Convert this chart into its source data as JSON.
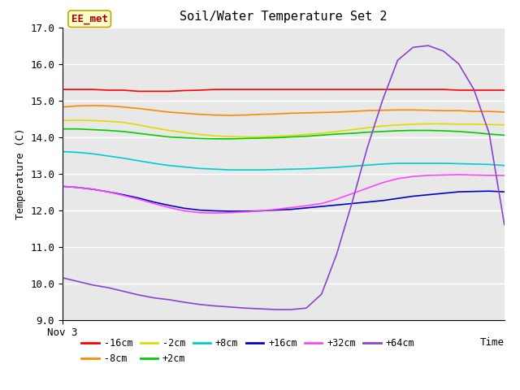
{
  "title": "Soil/Water Temperature Set 2",
  "xlabel": "Time",
  "ylabel": "Temperature (C)",
  "ylim": [
    9.0,
    17.0
  ],
  "ytick_values": [
    9.0,
    10.0,
    11.0,
    12.0,
    13.0,
    14.0,
    15.0,
    16.0,
    17.0
  ],
  "ytick_labels": [
    "9.0",
    "10.0",
    "11.0",
    "12.0",
    "13.0",
    "14.0",
    "15.0",
    "16.0",
    "17.0"
  ],
  "x_label_start": "Nov 3",
  "background_color": "#e8e8e8",
  "figure_bg": "#ffffff",
  "annotation_text": "EE_met",
  "annotation_bg": "#ffffcc",
  "annotation_border": "#bbaa00",
  "annotation_text_color": "#aa0000",
  "series": {
    "-16cm": {
      "color": "#ff0000",
      "y": [
        15.3,
        15.3,
        15.3,
        15.28,
        15.28,
        15.25,
        15.25,
        15.25,
        15.27,
        15.28,
        15.3,
        15.3,
        15.3,
        15.3,
        15.3,
        15.3,
        15.3,
        15.3,
        15.3,
        15.3,
        15.3,
        15.3,
        15.3,
        15.3,
        15.3,
        15.3,
        15.28,
        15.28,
        15.28,
        15.28
      ]
    },
    "-8cm": {
      "color": "#ff8800",
      "y": [
        14.82,
        14.85,
        14.86,
        14.85,
        14.82,
        14.78,
        14.73,
        14.68,
        14.65,
        14.62,
        14.6,
        14.59,
        14.6,
        14.62,
        14.63,
        14.65,
        14.66,
        14.67,
        14.68,
        14.7,
        14.72,
        14.73,
        14.74,
        14.74,
        14.73,
        14.72,
        14.72,
        14.7,
        14.7,
        14.68
      ]
    },
    "-2cm": {
      "color": "#dddd00",
      "y": [
        14.45,
        14.46,
        14.45,
        14.43,
        14.4,
        14.33,
        14.25,
        14.18,
        14.12,
        14.07,
        14.03,
        14.01,
        14.0,
        14.0,
        14.02,
        14.04,
        14.07,
        14.1,
        14.15,
        14.2,
        14.25,
        14.3,
        14.33,
        14.35,
        14.36,
        14.36,
        14.35,
        14.35,
        14.34,
        14.33
      ]
    },
    "+2cm": {
      "color": "#00cc00",
      "y": [
        14.22,
        14.22,
        14.2,
        14.18,
        14.15,
        14.1,
        14.05,
        14.0,
        13.98,
        13.96,
        13.95,
        13.95,
        13.96,
        13.97,
        13.98,
        14.0,
        14.02,
        14.05,
        14.08,
        14.1,
        14.13,
        14.15,
        14.17,
        14.18,
        14.18,
        14.17,
        14.15,
        14.12,
        14.08,
        14.05
      ]
    },
    "+8cm": {
      "color": "#00cccc",
      "y": [
        13.6,
        13.58,
        13.54,
        13.48,
        13.42,
        13.35,
        13.28,
        13.22,
        13.18,
        13.14,
        13.12,
        13.1,
        13.1,
        13.1,
        13.11,
        13.12,
        13.13,
        13.15,
        13.17,
        13.2,
        13.23,
        13.26,
        13.28,
        13.28,
        13.28,
        13.28,
        13.27,
        13.26,
        13.25,
        13.22
      ]
    },
    "+16cm": {
      "color": "#0000cc",
      "y": [
        12.65,
        12.62,
        12.57,
        12.5,
        12.42,
        12.33,
        12.22,
        12.13,
        12.05,
        12.0,
        11.98,
        11.97,
        11.97,
        11.98,
        12.0,
        12.02,
        12.06,
        12.1,
        12.14,
        12.18,
        12.22,
        12.26,
        12.32,
        12.38,
        12.42,
        12.46,
        12.5,
        12.51,
        12.52,
        12.5
      ]
    },
    "+32cm": {
      "color": "#ff44ff",
      "y": [
        12.65,
        12.62,
        12.57,
        12.5,
        12.4,
        12.3,
        12.18,
        12.07,
        11.98,
        11.93,
        11.92,
        11.93,
        11.95,
        11.98,
        12.02,
        12.07,
        12.12,
        12.18,
        12.3,
        12.45,
        12.6,
        12.75,
        12.86,
        12.92,
        12.95,
        12.96,
        12.97,
        12.96,
        12.95,
        12.95
      ]
    },
    "+64cm": {
      "color": "#8844cc",
      "y": [
        10.15,
        10.05,
        9.95,
        9.88,
        9.78,
        9.68,
        9.6,
        9.55,
        9.48,
        9.42,
        9.38,
        9.35,
        9.32,
        9.3,
        9.28,
        9.28,
        9.32,
        9.7,
        10.8,
        12.2,
        13.7,
        15.0,
        16.1,
        16.45,
        16.5,
        16.35,
        16.0,
        15.3,
        14.1,
        11.6
      ]
    }
  }
}
